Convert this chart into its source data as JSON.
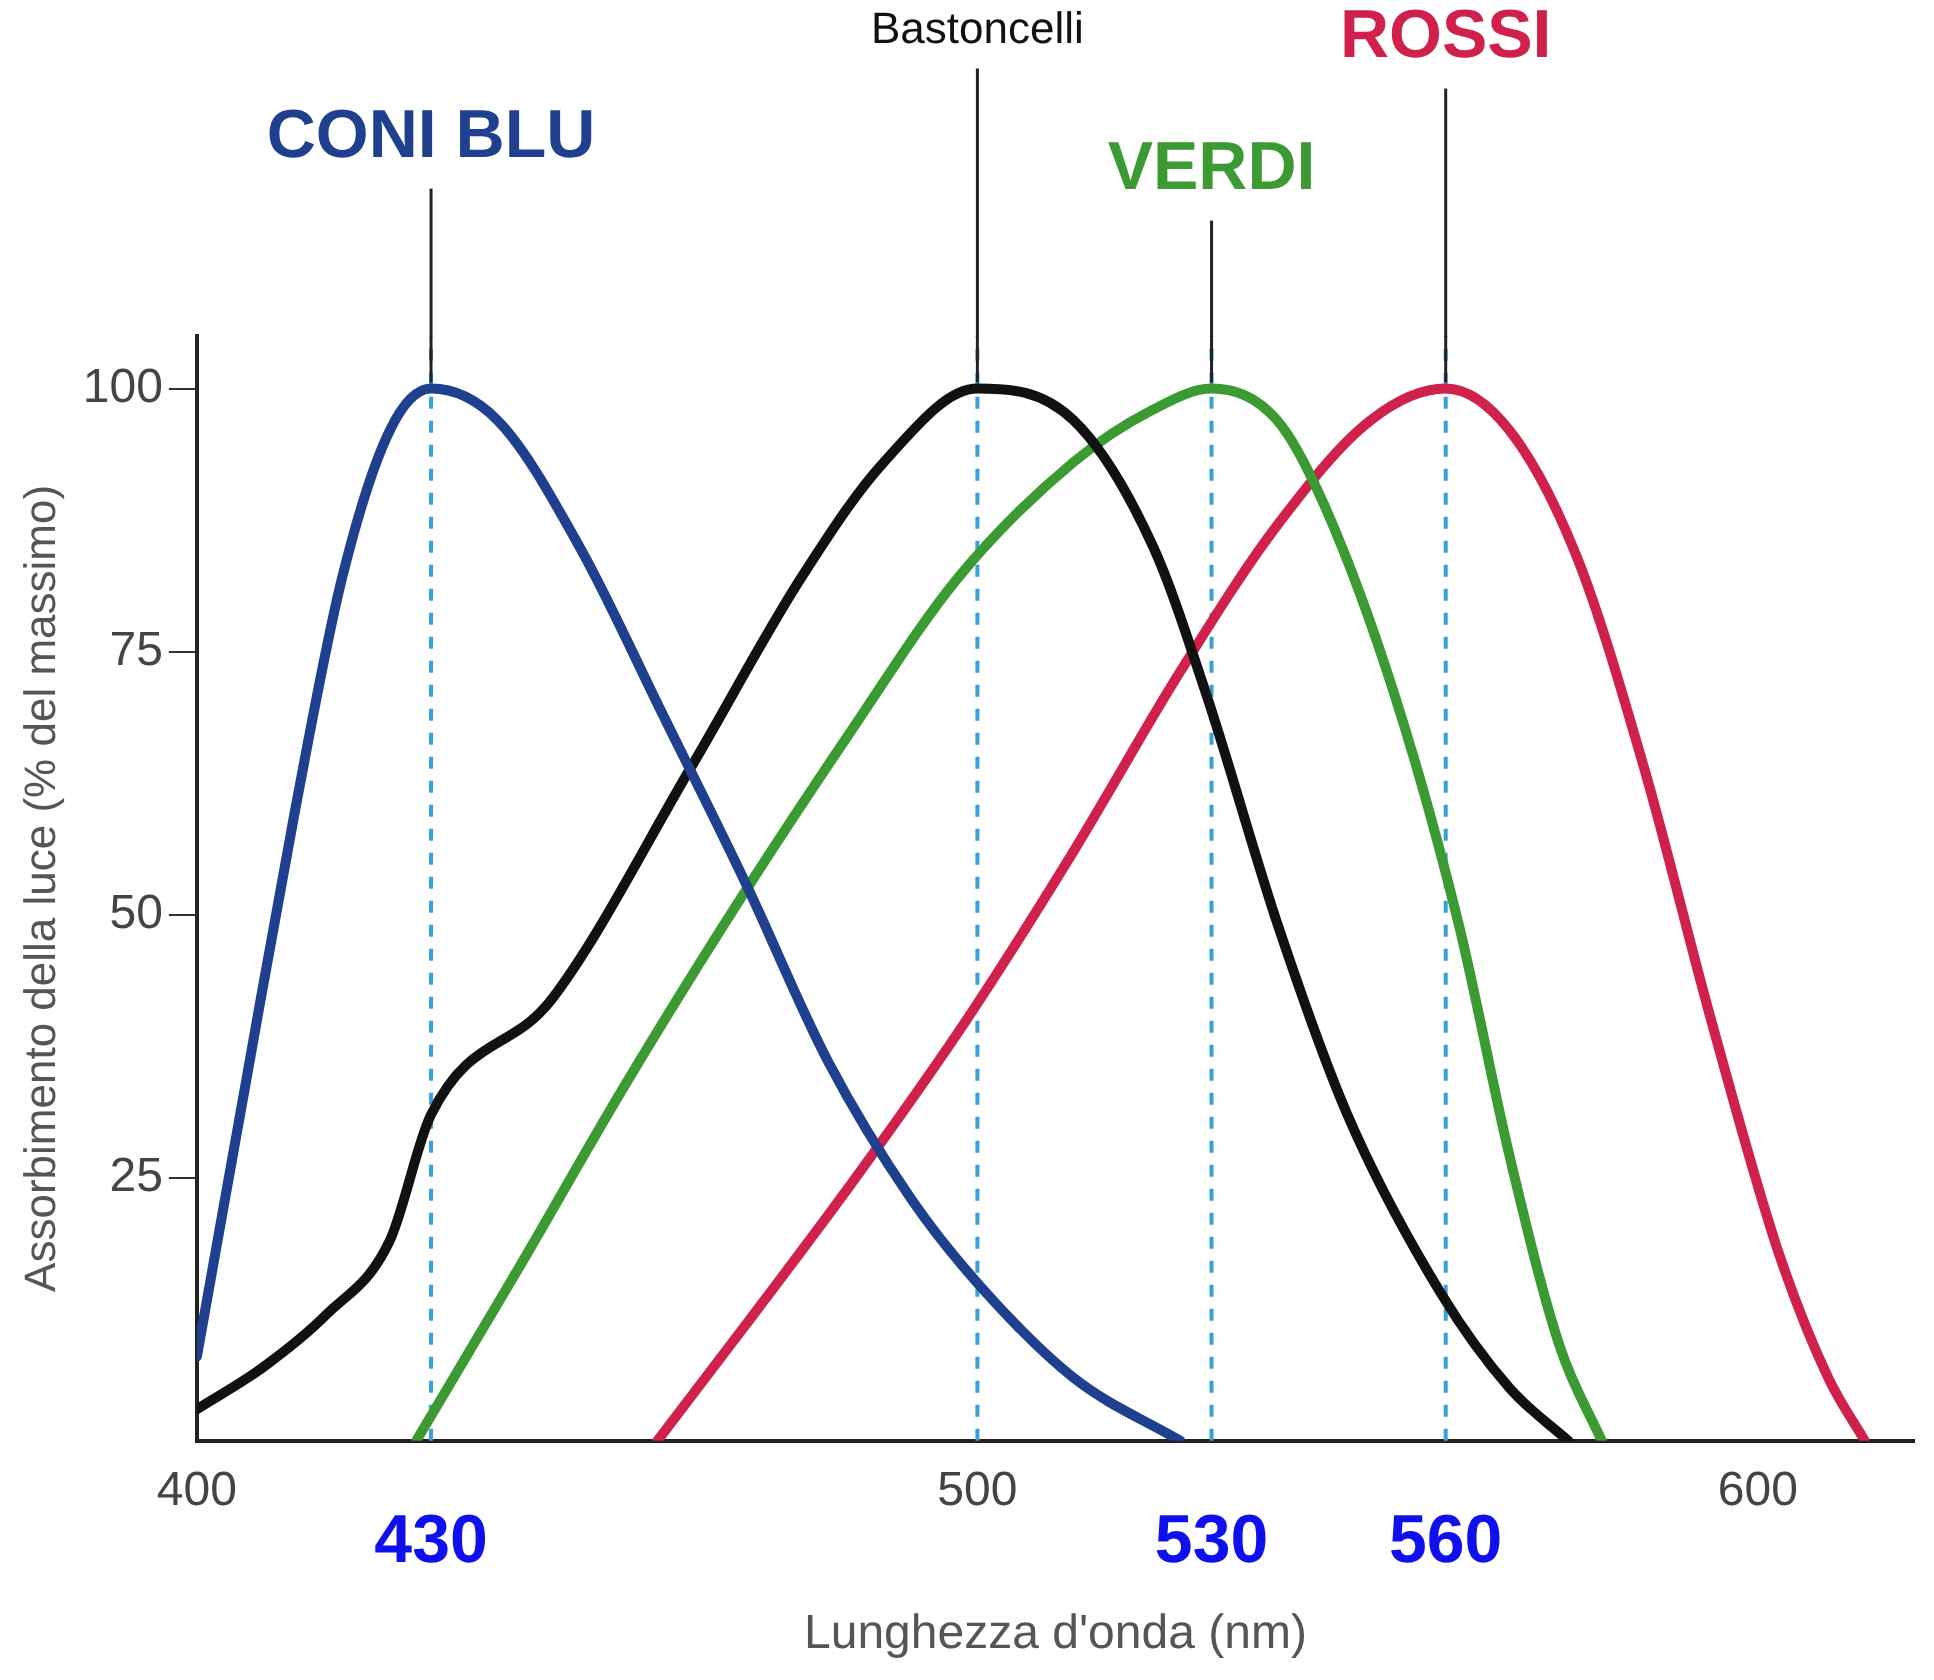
{
  "chart_data": {
    "type": "line",
    "xlabel": "Lunghezza d'onda (nm)",
    "ylabel": "Assorbimento della luce (% del massimo)",
    "xlim": [
      400,
      620
    ],
    "xticks": [
      400,
      500,
      600
    ],
    "ylim": [
      0,
      105
    ],
    "yticks": [
      25,
      50,
      75,
      100
    ],
    "grid": false,
    "legend": false,
    "marker": "none",
    "line_style": "solid",
    "series": [
      {
        "name": "CONI BLU",
        "color": "#1f3f8f",
        "x": [
          400,
          406.5,
          412.6,
          418.6,
          424.7,
          430,
          438.5,
          449,
          459.7,
          470.3,
          480.9,
          491.5,
          500,
          512.3,
          526
        ],
        "values": [
          8,
          35,
          60,
          82,
          96,
          100,
          97,
          85,
          69,
          53,
          36,
          23,
          15,
          6,
          0
        ]
      },
      {
        "name": "Bastoncelli",
        "color": "#111111",
        "x": [
          400,
          408.5,
          416.6,
          424.7,
          430,
          445.5,
          463.3,
          477.4,
          488,
          500,
          512.3,
          522.5,
          529.3,
          538.5,
          547.4,
          559.4,
          568.2,
          575.7
        ],
        "values": [
          3,
          7,
          12,
          19,
          31,
          42,
          64,
          82,
          93,
          100,
          97,
          85,
          71,
          49,
          31,
          14,
          5,
          0
        ]
      },
      {
        "name": "VERDI",
        "color": "#3c9a32",
        "x": [
          428.1,
          440.9,
          455,
          469.2,
          483.4,
          497.5,
          512.3,
          522.5,
          530,
          538.4,
          544.4,
          553.4,
          561.7,
          568.2,
          574.6,
          580
        ],
        "values": [
          0,
          16,
          34,
          51,
          67,
          82,
          93,
          98,
          100,
          97,
          89,
          71,
          49,
          27,
          9,
          0
        ]
      },
      {
        "name": "ROSSI",
        "color": "#d0214d",
        "x": [
          459,
          470.3,
          484.4,
          498.6,
          512.3,
          525.9,
          538.4,
          550.4,
          560,
          568.2,
          576.8,
          585.4,
          594,
          602.6,
          609,
          613.7
        ],
        "values": [
          0,
          11,
          25,
          40,
          56,
          73,
          87,
          97,
          100,
          96,
          84,
          64,
          40,
          18,
          6,
          0
        ]
      }
    ],
    "ref_lines": [
      {
        "axis": "x",
        "value": 430,
        "label": "430",
        "color": "#3aa0d8",
        "line_style": "dashed"
      },
      {
        "axis": "x",
        "value": 500,
        "color": "#3aa0d8",
        "line_style": "dashed"
      },
      {
        "axis": "x",
        "value": 530,
        "label": "530",
        "color": "#3aa0d8",
        "line_style": "dashed"
      },
      {
        "axis": "x",
        "value": 560,
        "label": "560",
        "color": "#3aa0d8",
        "line_style": "dashed"
      }
    ]
  }
}
